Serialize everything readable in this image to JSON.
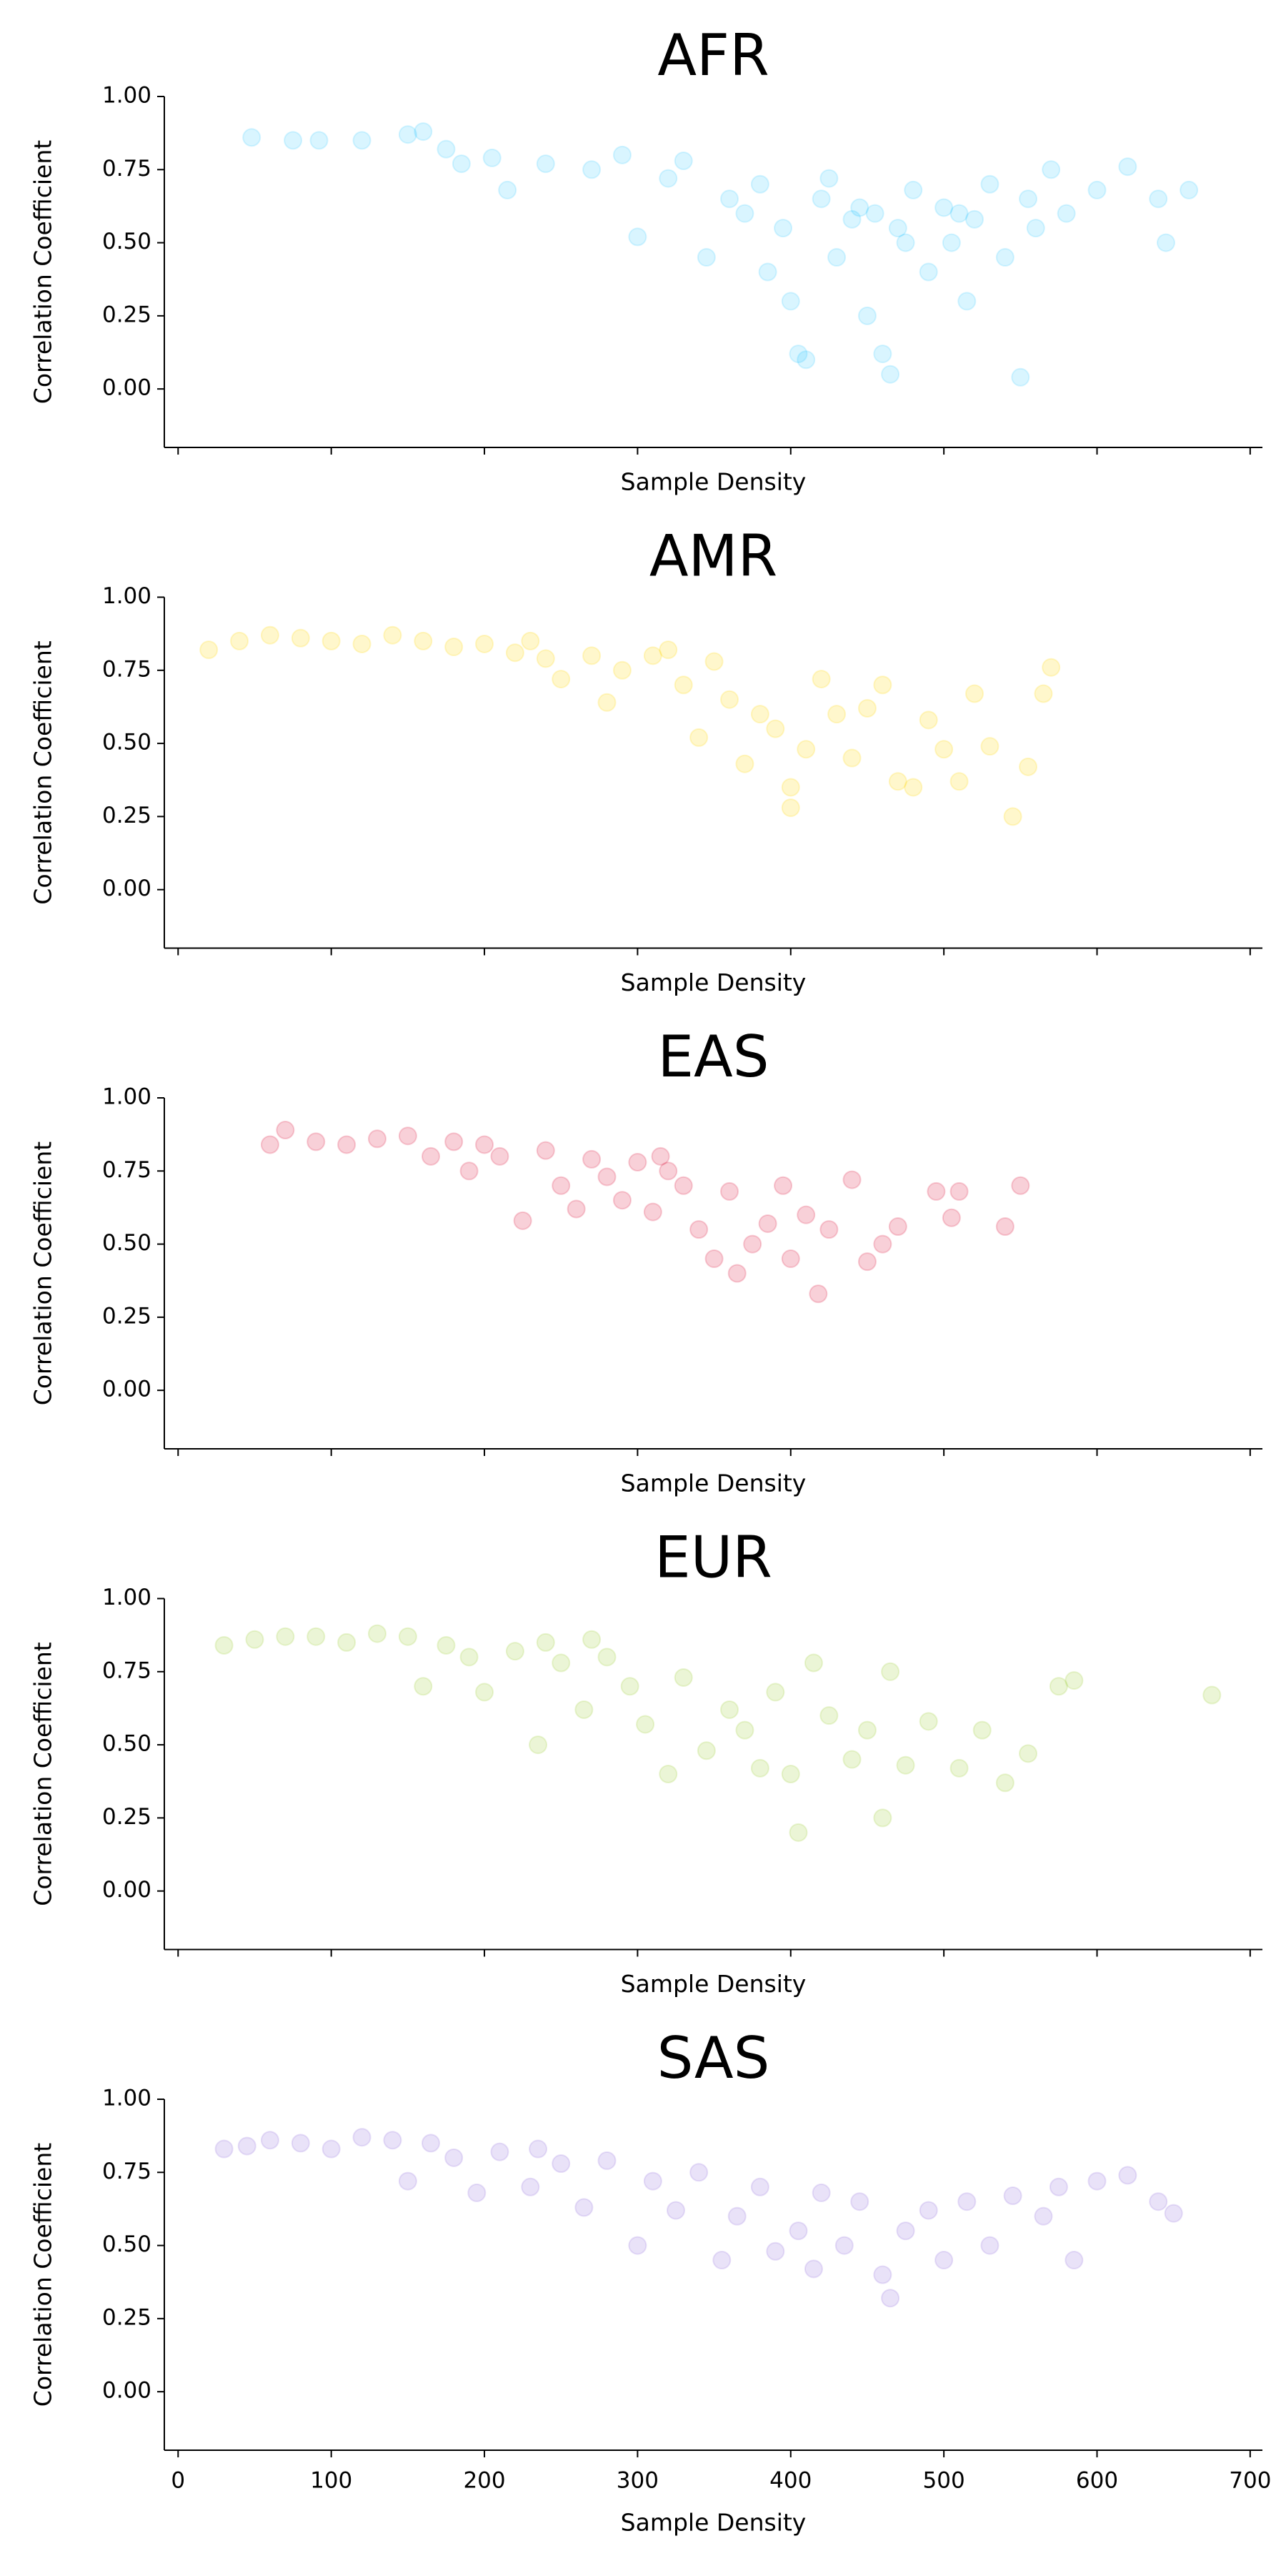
{
  "chart_data": [
    {
      "type": "scatter",
      "title": "AFR",
      "x_label": "Sample Density",
      "y_label": "Correlation Coefficient",
      "xlim": [
        -9,
        708
      ],
      "ylim": [
        -0.2,
        1.0
      ],
      "xticks": [
        0,
        100,
        200,
        300,
        400,
        500,
        600,
        700
      ],
      "yticks": [
        {
          "value": 0,
          "label": "0.00"
        },
        0.25,
        {
          "value": 0.5,
          "label": "0.50"
        },
        0.75,
        {
          "value": 1,
          "label": "1.00"
        }
      ],
      "series": [
        {
          "color": "#00bfff",
          "alpha": 0.15,
          "x": [
            48,
            75,
            92,
            120,
            150,
            160,
            175,
            185,
            205,
            215,
            240,
            270,
            290,
            300,
            320,
            330,
            345,
            360,
            370,
            380,
            395,
            400,
            405,
            410,
            420,
            430,
            440,
            450,
            455,
            460,
            465,
            470,
            480,
            490,
            500,
            505,
            515,
            520,
            530,
            540,
            550,
            555,
            560,
            570,
            580,
            600,
            620,
            640,
            645,
            660,
            425,
            475,
            510,
            445,
            385
          ],
          "values": [
            0.86,
            0.85,
            0.85,
            0.85,
            0.87,
            0.88,
            0.82,
            0.77,
            0.79,
            0.68,
            0.77,
            0.75,
            0.8,
            0.52,
            0.72,
            0.78,
            0.45,
            0.65,
            0.6,
            0.7,
            0.55,
            0.3,
            0.12,
            0.1,
            0.65,
            0.45,
            0.58,
            0.25,
            0.6,
            0.12,
            0.05,
            0.55,
            0.68,
            0.4,
            0.62,
            0.5,
            0.3,
            0.58,
            0.7,
            0.45,
            0.04,
            0.65,
            0.55,
            0.75,
            0.6,
            0.68,
            0.76,
            0.65,
            0.5,
            0.68,
            0.72,
            0.5,
            0.6,
            0.62,
            0.4
          ]
        }
      ]
    },
    {
      "type": "scatter",
      "title": "AMR",
      "x_label": "Sample Density",
      "y_label": "Correlation Coefficient",
      "xlim": [
        -9,
        708
      ],
      "ylim": [
        -0.2,
        1.0
      ],
      "xticks": [
        0,
        100,
        200,
        300,
        400,
        500,
        600,
        700
      ],
      "yticks": [
        {
          "value": 0,
          "label": "0.00"
        },
        0.25,
        {
          "value": 0.5,
          "label": "0.50"
        },
        0.75,
        {
          "value": 1,
          "label": "1.00"
        }
      ],
      "series": [
        {
          "color": "#ffd700",
          "alpha": 0.2,
          "x": [
            20,
            40,
            60,
            80,
            100,
            120,
            140,
            160,
            180,
            200,
            220,
            240,
            250,
            270,
            280,
            290,
            310,
            320,
            330,
            340,
            350,
            360,
            370,
            380,
            390,
            400,
            410,
            420,
            430,
            440,
            450,
            460,
            470,
            480,
            490,
            500,
            510,
            520,
            530,
            545,
            555,
            565,
            570,
            400,
            230
          ],
          "values": [
            0.82,
            0.85,
            0.87,
            0.86,
            0.85,
            0.84,
            0.87,
            0.85,
            0.83,
            0.84,
            0.81,
            0.79,
            0.72,
            0.8,
            0.64,
            0.75,
            0.8,
            0.82,
            0.7,
            0.52,
            0.78,
            0.65,
            0.43,
            0.6,
            0.55,
            0.35,
            0.48,
            0.72,
            0.6,
            0.45,
            0.62,
            0.7,
            0.37,
            0.35,
            0.58,
            0.48,
            0.37,
            0.67,
            0.49,
            0.25,
            0.42,
            0.67,
            0.76,
            0.28,
            0.85
          ]
        }
      ]
    },
    {
      "type": "scatter",
      "title": "EAS",
      "x_label": "Sample Density",
      "y_label": "Correlation Coefficient",
      "xlim": [
        -9,
        708
      ],
      "ylim": [
        -0.2,
        1.0
      ],
      "xticks": [
        0,
        100,
        200,
        300,
        400,
        500,
        600,
        700
      ],
      "yticks": [
        {
          "value": 0,
          "label": "0.00"
        },
        0.25,
        {
          "value": 0.5,
          "label": "0.50"
        },
        0.75,
        {
          "value": 1,
          "label": "1.00"
        }
      ],
      "series": [
        {
          "color": "#dc143c",
          "alpha": 0.2,
          "x": [
            60,
            70,
            90,
            110,
            130,
            150,
            165,
            180,
            190,
            200,
            210,
            225,
            240,
            250,
            260,
            270,
            280,
            290,
            300,
            310,
            320,
            330,
            340,
            350,
            360,
            365,
            375,
            385,
            395,
            400,
            410,
            418,
            425,
            440,
            450,
            460,
            470,
            495,
            505,
            510,
            540,
            550,
            315
          ],
          "values": [
            0.84,
            0.89,
            0.85,
            0.84,
            0.86,
            0.87,
            0.8,
            0.85,
            0.75,
            0.84,
            0.8,
            0.58,
            0.82,
            0.7,
            0.62,
            0.79,
            0.73,
            0.65,
            0.78,
            0.61,
            0.75,
            0.7,
            0.55,
            0.45,
            0.68,
            0.4,
            0.5,
            0.57,
            0.7,
            0.45,
            0.6,
            0.33,
            0.55,
            0.72,
            0.44,
            0.5,
            0.56,
            0.68,
            0.59,
            0.68,
            0.56,
            0.7,
            0.8
          ]
        }
      ]
    },
    {
      "type": "scatter",
      "title": "EUR",
      "x_label": "Sample Density",
      "y_label": "Correlation Coefficient",
      "xlim": [
        -9,
        708
      ],
      "ylim": [
        -0.2,
        1.0
      ],
      "xticks": [
        0,
        100,
        200,
        300,
        400,
        500,
        600,
        700
      ],
      "yticks": [
        {
          "value": 0,
          "label": "0.00"
        },
        0.25,
        {
          "value": 0.5,
          "label": "0.50"
        },
        0.75,
        {
          "value": 1,
          "label": "1.00"
        }
      ],
      "series": [
        {
          "color": "#9acd32",
          "alpha": 0.2,
          "x": [
            30,
            50,
            70,
            90,
            110,
            130,
            150,
            160,
            175,
            190,
            200,
            220,
            235,
            250,
            265,
            280,
            295,
            305,
            320,
            330,
            345,
            360,
            370,
            380,
            390,
            400,
            405,
            415,
            425,
            440,
            450,
            460,
            465,
            475,
            490,
            510,
            525,
            540,
            555,
            575,
            585,
            675,
            240,
            270
          ],
          "values": [
            0.84,
            0.86,
            0.87,
            0.87,
            0.85,
            0.88,
            0.87,
            0.7,
            0.84,
            0.8,
            0.68,
            0.82,
            0.5,
            0.78,
            0.62,
            0.8,
            0.7,
            0.57,
            0.4,
            0.73,
            0.48,
            0.62,
            0.55,
            0.42,
            0.68,
            0.4,
            0.2,
            0.78,
            0.6,
            0.45,
            0.55,
            0.25,
            0.75,
            0.43,
            0.58,
            0.42,
            0.55,
            0.37,
            0.47,
            0.7,
            0.72,
            0.67,
            0.85,
            0.86
          ]
        }
      ]
    },
    {
      "type": "scatter",
      "title": "SAS",
      "x_label": "Sample Density",
      "y_label": "Correlation Coefficient",
      "xlim": [
        -9,
        708
      ],
      "ylim": [
        -0.2,
        1.0
      ],
      "xticks": [
        0,
        100,
        200,
        300,
        400,
        500,
        600,
        700
      ],
      "yticks": [
        {
          "value": 0,
          "label": "0.00"
        },
        0.25,
        {
          "value": 0.5,
          "label": "0.50"
        },
        0.75,
        {
          "value": 1,
          "label": "1.00"
        }
      ],
      "series": [
        {
          "color": "#9370db",
          "alpha": 0.2,
          "x": [
            30,
            45,
            60,
            80,
            100,
            120,
            140,
            150,
            165,
            180,
            195,
            210,
            230,
            250,
            265,
            280,
            300,
            310,
            325,
            340,
            355,
            365,
            380,
            390,
            405,
            415,
            420,
            435,
            445,
            460,
            465,
            475,
            490,
            500,
            515,
            530,
            545,
            565,
            575,
            585,
            600,
            620,
            640,
            650,
            235
          ],
          "values": [
            0.83,
            0.84,
            0.86,
            0.85,
            0.83,
            0.87,
            0.86,
            0.72,
            0.85,
            0.8,
            0.68,
            0.82,
            0.7,
            0.78,
            0.63,
            0.79,
            0.5,
            0.72,
            0.62,
            0.75,
            0.45,
            0.6,
            0.7,
            0.48,
            0.55,
            0.42,
            0.68,
            0.5,
            0.65,
            0.4,
            0.32,
            0.55,
            0.62,
            0.45,
            0.65,
            0.5,
            0.67,
            0.6,
            0.7,
            0.45,
            0.72,
            0.74,
            0.65,
            0.61,
            0.83
          ]
        }
      ]
    }
  ]
}
